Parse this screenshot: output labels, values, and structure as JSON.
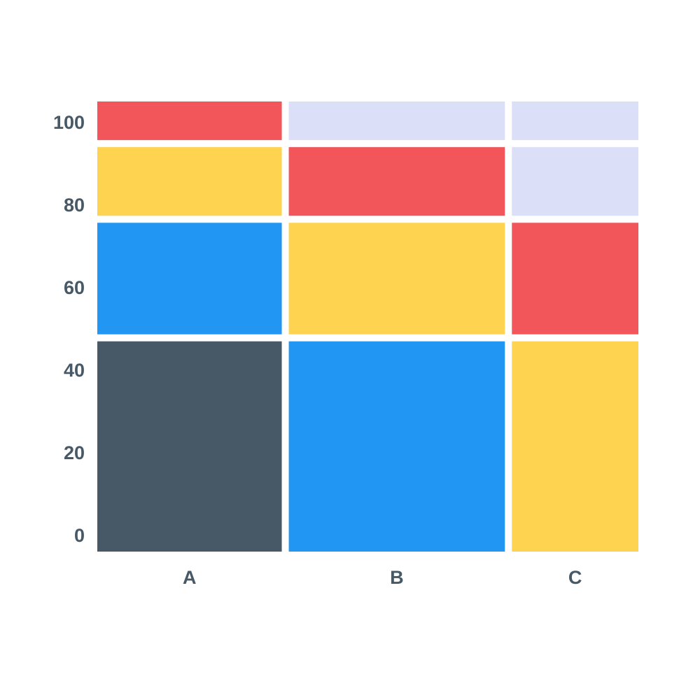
{
  "chart_data": {
    "type": "mosaic",
    "title": "",
    "xlabel": "",
    "ylabel": "",
    "ylim": [
      0,
      100
    ],
    "yticks": [
      "0",
      "20",
      "40",
      "60",
      "80",
      "100"
    ],
    "grid": false,
    "legend": "none",
    "columns": [
      {
        "category": "A",
        "width_share": 0.35,
        "segments": [
          {
            "value": 49,
            "color": "#475966"
          },
          {
            "value": 26,
            "color": "#2196f3"
          },
          {
            "value": 16,
            "color": "#fdd34f"
          },
          {
            "value": 9,
            "color": "#f2555a"
          }
        ]
      },
      {
        "category": "B",
        "width_share": 0.41,
        "segments": [
          {
            "value": 49,
            "color": "#2196f3"
          },
          {
            "value": 26,
            "color": "#fdd34f"
          },
          {
            "value": 16,
            "color": "#f2555a"
          },
          {
            "value": 9,
            "color": "#dcdff8"
          }
        ]
      },
      {
        "category": "C",
        "width_share": 0.24,
        "segments": [
          {
            "value": 49,
            "color": "#fdd34f"
          },
          {
            "value": 26,
            "color": "#f2555a"
          },
          {
            "value": 16,
            "color": "#dcdff8"
          },
          {
            "value": 9,
            "color": "#dcdff8"
          }
        ]
      }
    ]
  }
}
